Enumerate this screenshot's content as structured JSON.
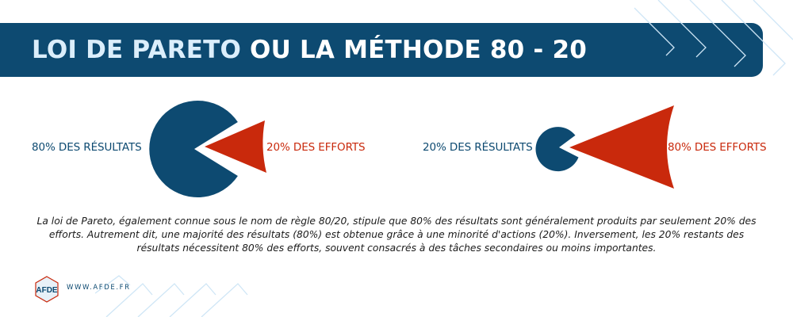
{
  "header": {
    "title_highlight": "LOI DE PARETO",
    "title_rest": " OU LA MÉTHODE 80 - 20"
  },
  "diagram_left": {
    "label_left": "80% DES RÉSULTATS",
    "label_right": "20% DES EFFORTS"
  },
  "diagram_right": {
    "label_left": "20% DES RÉSULTATS",
    "label_right": "80% DES EFFORTS"
  },
  "description": "La loi de Pareto, également connue sous le nom de règle 80/20, stipule que 80% des résultats sont généralement produits par seulement 20% des efforts. Autrement dit, une majorité des résultats (80%) est obtenue grâce à une minorité d'actions (20%). Inversement, les 20% restants des résultats nécessitent 80% des efforts, souvent consacrés à des tâches secondaires ou moins importantes.",
  "footer": {
    "logo_text": "AFDE",
    "url": "WWW.AFDE.FR"
  },
  "colors": {
    "navy": "#0d4a71",
    "red": "#c9290c",
    "light_blue": "#dbeefb"
  }
}
